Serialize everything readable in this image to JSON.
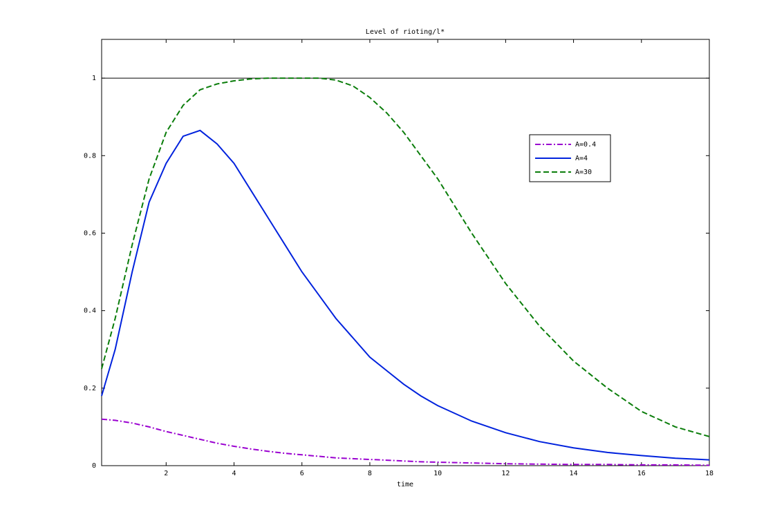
{
  "chart_data": {
    "type": "line",
    "title": "Level of rioting/l*",
    "x_label": "time",
    "x": [
      0.1,
      0.5,
      1,
      1.5,
      2,
      2.5,
      3,
      3.5,
      4,
      4.5,
      5,
      5.5,
      6,
      6.5,
      7,
      7.5,
      8,
      8.5,
      9,
      9.5,
      10,
      11,
      12,
      13,
      14,
      15,
      16,
      17,
      18
    ],
    "series": [
      {
        "name": "A=0.4",
        "color": "#9a00d0",
        "style": "dashdot",
        "values": [
          0.12,
          0.117,
          0.11,
          0.1,
          0.088,
          0.078,
          0.068,
          0.058,
          0.05,
          0.043,
          0.037,
          0.032,
          0.028,
          0.024,
          0.02,
          0.018,
          0.016,
          0.014,
          0.012,
          0.01,
          0.009,
          0.007,
          0.005,
          0.004,
          0.003,
          0.003,
          0.002,
          0.002,
          0.001
        ]
      },
      {
        "name": "A=4",
        "color": "#0022dd",
        "style": "solid",
        "values": [
          0.18,
          0.3,
          0.5,
          0.68,
          0.78,
          0.85,
          0.865,
          0.83,
          0.78,
          0.71,
          0.64,
          0.57,
          0.5,
          0.44,
          0.38,
          0.33,
          0.28,
          0.245,
          0.21,
          0.18,
          0.155,
          0.115,
          0.085,
          0.062,
          0.046,
          0.034,
          0.026,
          0.019,
          0.015
        ]
      },
      {
        "name": "A=30",
        "color": "#0a7d0a",
        "style": "dashed",
        "values": [
          0.25,
          0.38,
          0.57,
          0.74,
          0.86,
          0.93,
          0.97,
          0.985,
          0.993,
          0.998,
          1.0,
          1.0,
          1.0,
          1.0,
          0.995,
          0.98,
          0.95,
          0.91,
          0.86,
          0.8,
          0.74,
          0.6,
          0.47,
          0.36,
          0.27,
          0.2,
          0.14,
          0.1,
          0.075
        ]
      }
    ],
    "reference_line": 1,
    "xlim": [
      0.1,
      18
    ],
    "ylim": [
      0,
      1.1
    ],
    "xticks": [
      2,
      4,
      6,
      8,
      10,
      12,
      14,
      16,
      18
    ],
    "yticks": [
      0,
      0.2,
      0.4,
      0.6,
      0.8,
      1
    ],
    "legend": "upper right",
    "grid": false
  }
}
